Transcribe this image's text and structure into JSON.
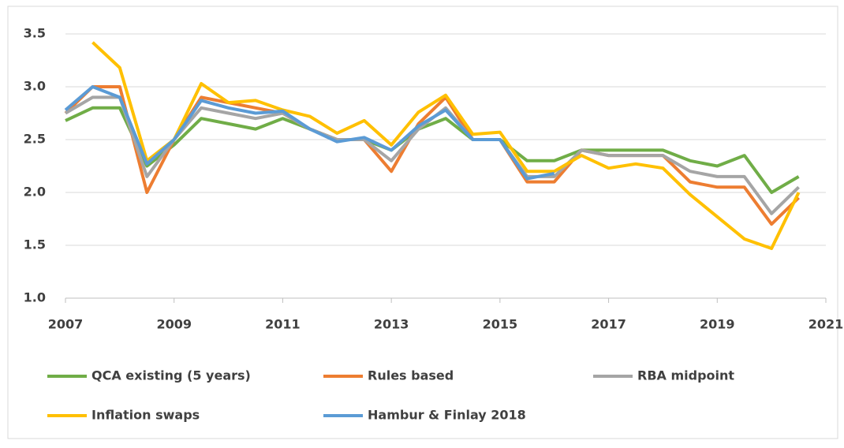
{
  "chart_data": {
    "type": "line",
    "x": [
      2007,
      2007.5,
      2008,
      2008.5,
      2009,
      2009.5,
      2010,
      2010.5,
      2011,
      2011.5,
      2012,
      2012.5,
      2013,
      2013.5,
      2014,
      2014.5,
      2015,
      2015.5,
      2016,
      2016.5,
      2017,
      2017.5,
      2018,
      2018.5,
      2019,
      2019.5,
      2020,
      2020.5
    ],
    "series": [
      {
        "name": "QCA existing (5 years)",
        "color": "#70ad47",
        "values": [
          2.68,
          2.8,
          2.8,
          2.25,
          2.45,
          2.7,
          2.65,
          2.6,
          2.7,
          2.6,
          2.5,
          2.5,
          2.4,
          2.6,
          2.7,
          2.5,
          2.5,
          2.3,
          2.3,
          2.4,
          2.4,
          2.4,
          2.4,
          2.3,
          2.25,
          2.35,
          2.0,
          2.15
        ]
      },
      {
        "name": "Rules based",
        "color": "#ed7d31",
        "values": [
          2.75,
          3.0,
          3.0,
          2.0,
          2.5,
          2.9,
          2.85,
          2.8,
          2.75,
          2.6,
          2.5,
          2.5,
          2.2,
          2.65,
          2.9,
          2.5,
          2.5,
          2.1,
          2.1,
          2.4,
          2.35,
          2.35,
          2.35,
          2.1,
          2.05,
          2.05,
          1.7,
          1.95
        ]
      },
      {
        "name": "RBA midpoint",
        "color": "#a5a5a5",
        "values": [
          2.75,
          2.9,
          2.9,
          2.15,
          2.5,
          2.8,
          2.75,
          2.7,
          2.75,
          2.6,
          2.5,
          2.5,
          2.3,
          2.6,
          2.8,
          2.5,
          2.5,
          2.15,
          2.15,
          2.4,
          2.35,
          2.35,
          2.35,
          2.2,
          2.15,
          2.15,
          1.8,
          2.05
        ]
      },
      {
        "name": "Inflation swaps",
        "color": "#ffc000",
        "values": [
          null,
          3.42,
          3.18,
          2.3,
          2.5,
          3.03,
          2.85,
          2.87,
          2.78,
          2.72,
          2.56,
          2.68,
          2.45,
          2.76,
          2.92,
          2.55,
          2.57,
          2.2,
          2.2,
          2.35,
          2.23,
          2.27,
          2.23,
          1.98,
          1.77,
          1.56,
          1.47,
          2.0
        ]
      },
      {
        "name": "Hambur & Finlay 2018",
        "color": "#5b9bd5",
        "values": [
          2.78,
          3.0,
          2.9,
          2.27,
          2.5,
          2.87,
          2.8,
          2.75,
          2.77,
          2.6,
          2.48,
          2.52,
          2.4,
          2.63,
          2.78,
          2.5,
          2.5,
          2.13,
          2.18,
          null,
          null,
          null,
          null,
          null,
          null,
          null,
          null,
          null
        ]
      }
    ],
    "xlim": [
      2007,
      2021
    ],
    "xticks": [
      2007,
      2009,
      2011,
      2013,
      2015,
      2017,
      2019,
      2021
    ],
    "ylim": [
      1.0,
      3.5
    ],
    "yticks": [
      {
        "value": 1.0,
        "label": "1.0"
      },
      {
        "value": 1.5,
        "label": "1.5"
      },
      {
        "value": 2.0,
        "label": "2.0"
      },
      {
        "value": 2.5,
        "label": "2.5"
      },
      {
        "value": 3.0,
        "label": "3.0"
      },
      {
        "value": 3.5,
        "label": "3.5"
      }
    ],
    "grid": true,
    "legend": "bottom"
  }
}
